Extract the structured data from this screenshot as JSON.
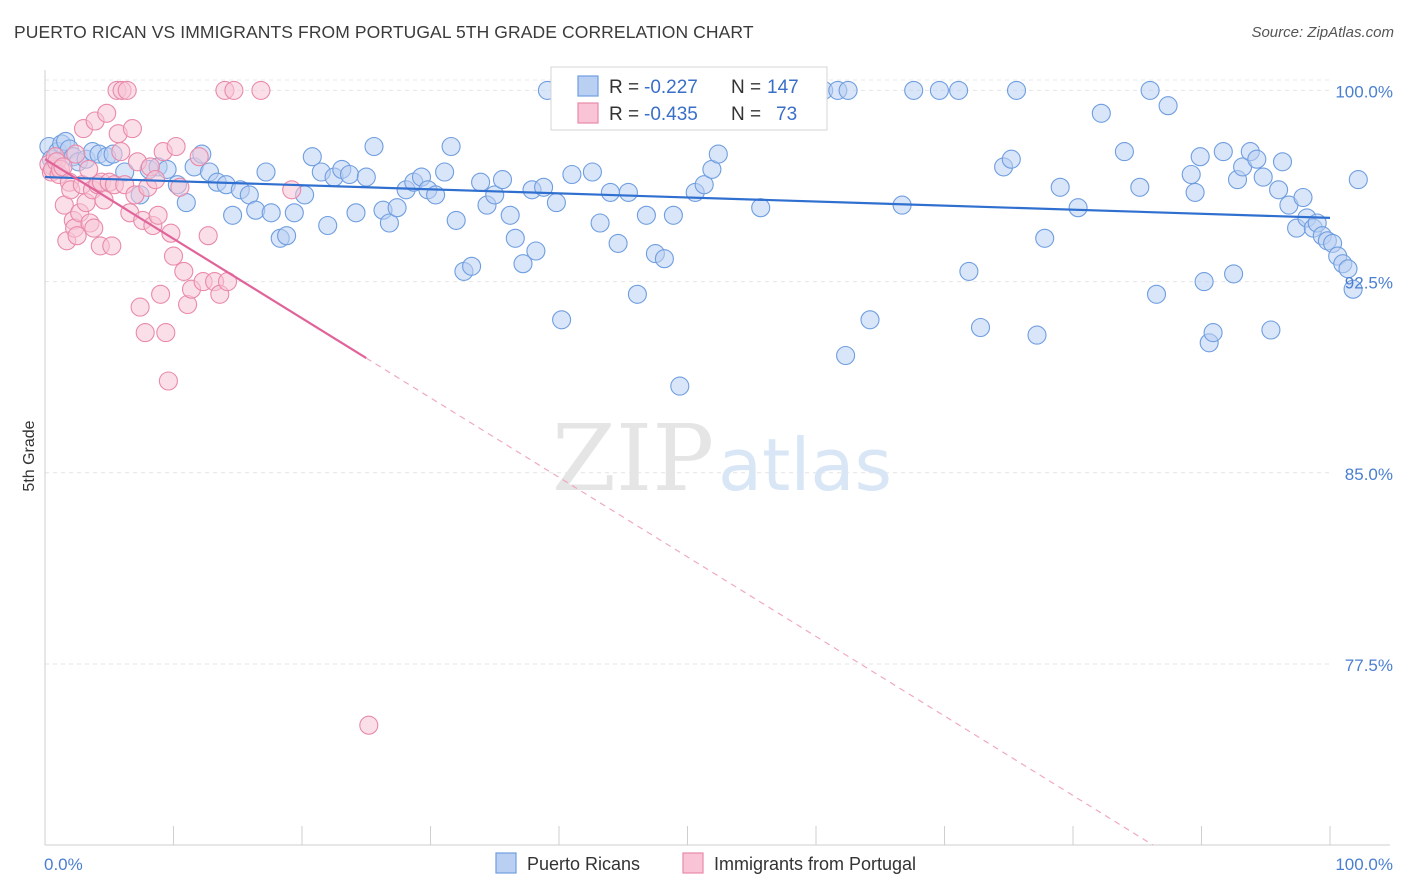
{
  "header": {
    "title": "PUERTO RICAN VS IMMIGRANTS FROM PORTUGAL 5TH GRADE CORRELATION CHART",
    "source": "Source: ZipAtlas.com"
  },
  "watermark": {
    "zip": "ZIP",
    "atlas": "atlas"
  },
  "legend": {
    "r_label": "R =",
    "n_label": "N =",
    "rows": [
      {
        "r": "-0.227",
        "n": "147",
        "fill": "#b9d0f2",
        "stroke": "#6f9ee0"
      },
      {
        "r": "-0.435",
        "n": "73",
        "fill": "#f8c4d6",
        "stroke": "#e98aaa"
      }
    ]
  },
  "chart_data": {
    "type": "scatter",
    "xlabel": "",
    "ylabel": "5th Grade",
    "xlim": [
      0,
      100
    ],
    "ylim": [
      70.4,
      100.8
    ],
    "x_tick_labels": [
      "0.0%",
      "100.0%"
    ],
    "y_ticks": [
      100.0,
      92.5,
      85.0,
      77.5
    ],
    "y_tick_labels": [
      "100.0%",
      "92.5%",
      "85.0%",
      "77.5%"
    ],
    "grid": true,
    "legend_position": "top-center",
    "series": [
      {
        "name": "Puerto Ricans",
        "color": "#6f9ee0",
        "fill": "#b9d0f2",
        "line_color": "#2f6fcf",
        "trend": {
          "x": [
            0,
            100
          ],
          "y": [
            96.6,
            95.0
          ]
        },
        "points": [
          [
            0.3,
            97.8
          ],
          [
            0.5,
            97.3
          ],
          [
            0.7,
            97.0
          ],
          [
            1.0,
            97.6
          ],
          [
            1.3,
            97.9
          ],
          [
            1.6,
            98.0
          ],
          [
            1.9,
            97.7
          ],
          [
            2.2,
            97.4
          ],
          [
            2.6,
            97.2
          ],
          [
            3.2,
            97.3
          ],
          [
            3.7,
            97.6
          ],
          [
            4.2,
            97.5
          ],
          [
            4.8,
            97.4
          ],
          [
            5.3,
            97.5
          ],
          [
            6.2,
            96.8
          ],
          [
            7.4,
            95.9
          ],
          [
            8.1,
            96.9
          ],
          [
            8.8,
            97.0
          ],
          [
            9.5,
            96.9
          ],
          [
            10.3,
            96.3
          ],
          [
            11.0,
            95.6
          ],
          [
            11.6,
            97.0
          ],
          [
            12.2,
            97.5
          ],
          [
            12.8,
            96.8
          ],
          [
            13.4,
            96.4
          ],
          [
            14.1,
            96.3
          ],
          [
            14.6,
            95.1
          ],
          [
            15.2,
            96.1
          ],
          [
            15.9,
            95.9
          ],
          [
            16.4,
            95.3
          ],
          [
            17.2,
            96.8
          ],
          [
            17.6,
            95.2
          ],
          [
            18.3,
            94.2
          ],
          [
            18.8,
            94.3
          ],
          [
            19.4,
            95.2
          ],
          [
            20.2,
            95.9
          ],
          [
            20.8,
            97.4
          ],
          [
            21.5,
            96.8
          ],
          [
            22.0,
            94.7
          ],
          [
            22.5,
            96.6
          ],
          [
            23.1,
            96.9
          ],
          [
            23.7,
            96.7
          ],
          [
            24.2,
            95.2
          ],
          [
            25.0,
            96.6
          ],
          [
            25.6,
            97.8
          ],
          [
            26.3,
            95.3
          ],
          [
            26.8,
            94.8
          ],
          [
            27.4,
            95.4
          ],
          [
            28.1,
            96.1
          ],
          [
            28.7,
            96.4
          ],
          [
            29.3,
            96.6
          ],
          [
            29.8,
            96.1
          ],
          [
            30.4,
            95.9
          ],
          [
            31.1,
            96.8
          ],
          [
            31.6,
            97.8
          ],
          [
            32.0,
            94.9
          ],
          [
            32.6,
            92.9
          ],
          [
            33.2,
            93.1
          ],
          [
            33.9,
            96.4
          ],
          [
            34.4,
            95.5
          ],
          [
            35.0,
            95.9
          ],
          [
            35.6,
            96.5
          ],
          [
            36.2,
            95.1
          ],
          [
            36.6,
            94.2
          ],
          [
            37.2,
            93.2
          ],
          [
            37.9,
            96.1
          ],
          [
            38.2,
            93.7
          ],
          [
            38.8,
            96.2
          ],
          [
            39.1,
            100.0
          ],
          [
            39.8,
            95.6
          ],
          [
            40.2,
            91.0
          ],
          [
            41.0,
            96.7
          ],
          [
            41.8,
            98.9
          ],
          [
            42.6,
            96.8
          ],
          [
            43.2,
            94.8
          ],
          [
            44.0,
            96.0
          ],
          [
            44.6,
            94.0
          ],
          [
            45.4,
            96.0
          ],
          [
            46.1,
            92.0
          ],
          [
            46.8,
            95.1
          ],
          [
            47.5,
            93.6
          ],
          [
            48.2,
            93.4
          ],
          [
            48.9,
            95.1
          ],
          [
            49.4,
            88.4
          ],
          [
            50.6,
            96.0
          ],
          [
            51.3,
            96.3
          ],
          [
            51.9,
            96.9
          ],
          [
            52.4,
            97.5
          ],
          [
            54.8,
            100.0
          ],
          [
            55.7,
            95.4
          ],
          [
            56.8,
            100.0
          ],
          [
            58.0,
            100.0
          ],
          [
            59.2,
            100.0
          ],
          [
            60.6,
            100.0
          ],
          [
            61.7,
            100.0
          ],
          [
            62.5,
            100.0
          ],
          [
            62.3,
            89.6
          ],
          [
            64.2,
            91.0
          ],
          [
            66.7,
            95.5
          ],
          [
            67.6,
            100.0
          ],
          [
            69.6,
            100.0
          ],
          [
            71.1,
            100.0
          ],
          [
            71.9,
            92.9
          ],
          [
            72.8,
            90.7
          ],
          [
            74.6,
            97.0
          ],
          [
            75.2,
            97.3
          ],
          [
            75.6,
            100.0
          ],
          [
            77.2,
            90.4
          ],
          [
            77.8,
            94.2
          ],
          [
            79.0,
            96.2
          ],
          [
            80.4,
            95.4
          ],
          [
            82.2,
            99.1
          ],
          [
            84.0,
            97.6
          ],
          [
            85.2,
            96.2
          ],
          [
            86.0,
            100.0
          ],
          [
            86.5,
            92.0
          ],
          [
            87.4,
            99.4
          ],
          [
            89.2,
            96.7
          ],
          [
            89.9,
            97.4
          ],
          [
            90.2,
            92.5
          ],
          [
            89.5,
            96.0
          ],
          [
            90.6,
            90.1
          ],
          [
            90.9,
            90.5
          ],
          [
            91.7,
            97.6
          ],
          [
            92.5,
            92.8
          ],
          [
            92.8,
            96.5
          ],
          [
            93.2,
            97.0
          ],
          [
            93.8,
            97.6
          ],
          [
            94.3,
            97.3
          ],
          [
            94.8,
            96.6
          ],
          [
            95.4,
            90.6
          ],
          [
            96.0,
            96.1
          ],
          [
            96.3,
            97.2
          ],
          [
            96.8,
            95.5
          ],
          [
            97.4,
            94.6
          ],
          [
            97.9,
            95.8
          ],
          [
            98.2,
            95.0
          ],
          [
            98.7,
            94.6
          ],
          [
            99.0,
            94.8
          ],
          [
            99.4,
            94.3
          ],
          [
            99.8,
            94.1
          ],
          [
            100.2,
            94.0
          ],
          [
            100.6,
            93.5
          ],
          [
            101.0,
            93.2
          ],
          [
            101.4,
            93.0
          ],
          [
            101.8,
            92.2
          ],
          [
            102.2,
            96.5
          ]
        ]
      },
      {
        "name": "Immigrants from Portugal",
        "color": "#e98aaa",
        "fill": "#f8c4d6",
        "line_color": "#e0649a",
        "trend": {
          "x": [
            0,
            25
          ],
          "y": [
            97.3,
            89.5
          ]
        },
        "trend_dashed": {
          "x": [
            25,
            100
          ],
          "y": [
            89.5,
            66.1
          ]
        },
        "points": [
          [
            0.3,
            97.1
          ],
          [
            0.5,
            96.8
          ],
          [
            0.6,
            96.9
          ],
          [
            0.8,
            97.4
          ],
          [
            0.9,
            97.2
          ],
          [
            1.1,
            96.7
          ],
          [
            1.2,
            96.9
          ],
          [
            1.4,
            97.0
          ],
          [
            1.5,
            95.5
          ],
          [
            1.7,
            94.1
          ],
          [
            1.9,
            96.4
          ],
          [
            2.0,
            96.1
          ],
          [
            2.2,
            94.9
          ],
          [
            2.3,
            94.6
          ],
          [
            2.4,
            97.5
          ],
          [
            2.5,
            94.3
          ],
          [
            2.7,
            95.2
          ],
          [
            2.9,
            96.3
          ],
          [
            3.0,
            98.5
          ],
          [
            3.2,
            95.6
          ],
          [
            3.4,
            96.9
          ],
          [
            3.5,
            94.8
          ],
          [
            3.7,
            96.1
          ],
          [
            3.8,
            94.6
          ],
          [
            3.9,
            98.8
          ],
          [
            4.1,
            96.3
          ],
          [
            4.3,
            93.9
          ],
          [
            4.4,
            96.4
          ],
          [
            4.6,
            95.7
          ],
          [
            4.8,
            99.1
          ],
          [
            5.0,
            96.4
          ],
          [
            5.2,
            93.9
          ],
          [
            5.4,
            96.3
          ],
          [
            5.6,
            100.0
          ],
          [
            5.7,
            98.3
          ],
          [
            5.9,
            97.6
          ],
          [
            6.0,
            100.0
          ],
          [
            6.2,
            96.3
          ],
          [
            6.4,
            100.0
          ],
          [
            6.6,
            95.2
          ],
          [
            6.8,
            98.5
          ],
          [
            7.0,
            95.9
          ],
          [
            7.2,
            97.2
          ],
          [
            7.4,
            91.5
          ],
          [
            7.6,
            94.9
          ],
          [
            7.8,
            90.5
          ],
          [
            8.0,
            96.2
          ],
          [
            8.2,
            97.0
          ],
          [
            8.4,
            94.7
          ],
          [
            8.6,
            96.5
          ],
          [
            8.8,
            95.1
          ],
          [
            9.0,
            92.0
          ],
          [
            9.2,
            97.6
          ],
          [
            9.4,
            90.5
          ],
          [
            9.6,
            88.6
          ],
          [
            9.8,
            94.4
          ],
          [
            10.0,
            93.5
          ],
          [
            10.2,
            97.8
          ],
          [
            10.5,
            96.2
          ],
          [
            10.8,
            92.9
          ],
          [
            11.1,
            91.6
          ],
          [
            11.4,
            92.2
          ],
          [
            12.0,
            97.4
          ],
          [
            12.3,
            92.5
          ],
          [
            12.7,
            94.3
          ],
          [
            13.2,
            92.5
          ],
          [
            13.6,
            92.0
          ],
          [
            14.0,
            100.0
          ],
          [
            14.2,
            92.5
          ],
          [
            14.7,
            100.0
          ],
          [
            16.8,
            100.0
          ],
          [
            19.2,
            96.1
          ],
          [
            25.2,
            75.1
          ]
        ]
      }
    ]
  },
  "bottom_legend": [
    {
      "label": "Puerto Ricans",
      "fill": "#b9d0f2",
      "stroke": "#6f9ee0"
    },
    {
      "label": "Immigrants from Portugal",
      "fill": "#f8c4d6",
      "stroke": "#e98aaa"
    }
  ]
}
